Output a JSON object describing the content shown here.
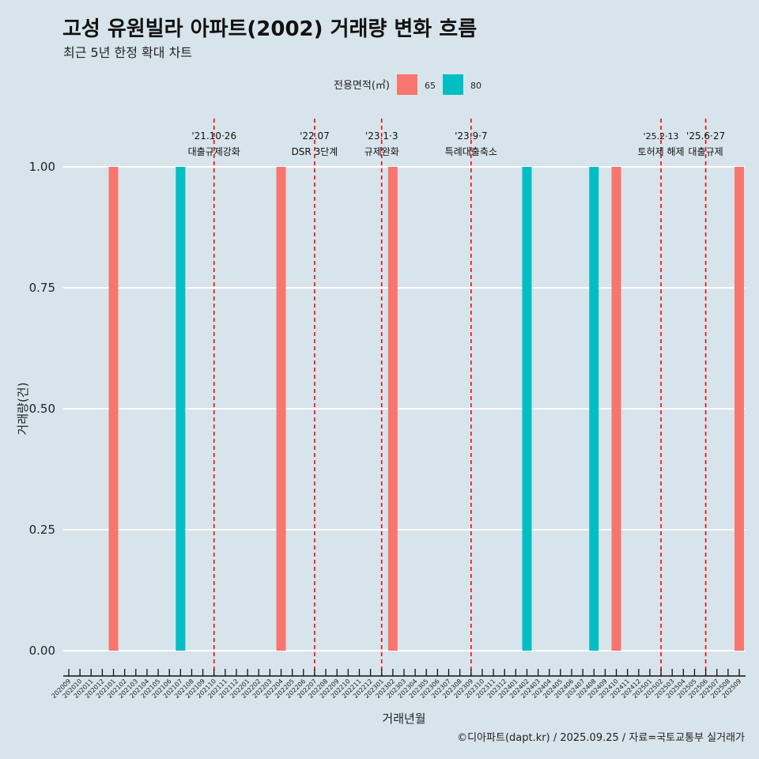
{
  "title": "고성 유원빌라 아파트(2002) 거래량 변화 흐름",
  "subtitle": "최근 5년 한정 확대 차트",
  "caption": "©디아파트(dapt.kr) / 2025.09.25 / 자료=국토교통부 실거래가",
  "chart_data": {
    "type": "bar",
    "xlabel": "거래년월",
    "ylabel": "거래량(건)",
    "ylim": [
      0,
      1
    ],
    "yticks": [
      0,
      0.25,
      0.5,
      0.75,
      1.0
    ],
    "ytick_labels": [
      "0.00",
      "0.25",
      "0.50",
      "0.75",
      "1.00"
    ],
    "grid": true,
    "legend": {
      "title": "전용면적(㎡)",
      "placement": "top",
      "entries": [
        {
          "name": "65",
          "color": "#f8766d"
        },
        {
          "name": "80",
          "color": "#00bfc4"
        }
      ]
    },
    "categories": [
      "202009",
      "202010",
      "202011",
      "202012",
      "202101",
      "202102",
      "202103",
      "202104",
      "202105",
      "202106",
      "202107",
      "202108",
      "202109",
      "202110",
      "202111",
      "202112",
      "202201",
      "202202",
      "202203",
      "202204",
      "202205",
      "202206",
      "202207",
      "202208",
      "202209",
      "202210",
      "202211",
      "202212",
      "202301",
      "202302",
      "202303",
      "202304",
      "202305",
      "202306",
      "202307",
      "202308",
      "202309",
      "202310",
      "202311",
      "202312",
      "202401",
      "202402",
      "202403",
      "202404",
      "202405",
      "202406",
      "202407",
      "202408",
      "202409",
      "202410",
      "202411",
      "202412",
      "202501",
      "202502",
      "202503",
      "202504",
      "202505",
      "202506",
      "202507",
      "202508",
      "202509"
    ],
    "bars": [
      {
        "month": "202101",
        "series": "65",
        "value": 1
      },
      {
        "month": "202107",
        "series": "80",
        "value": 1
      },
      {
        "month": "202204",
        "series": "65",
        "value": 1
      },
      {
        "month": "202302",
        "series": "65",
        "value": 1
      },
      {
        "month": "202402",
        "series": "80",
        "value": 1
      },
      {
        "month": "202408",
        "series": "80",
        "value": 1
      },
      {
        "month": "202410",
        "series": "65",
        "value": 1
      },
      {
        "month": "202509",
        "series": "65",
        "value": 1
      }
    ],
    "annotations": [
      {
        "month": "202110",
        "date": "'21.10·26",
        "label": "대출규제강화"
      },
      {
        "month": "202207",
        "date": "'22.07",
        "label": "DSR 3단계"
      },
      {
        "month": "202301",
        "date": "'23.1·3",
        "label": "규제완화"
      },
      {
        "month": "202309",
        "date": "'23.9·7",
        "label": "특례대출축소"
      },
      {
        "month": "202502",
        "date": "'25.2·13",
        "label": "토허제 해제"
      },
      {
        "month": "202506",
        "date": "'25.6·27",
        "label": "대출규제"
      }
    ]
  }
}
